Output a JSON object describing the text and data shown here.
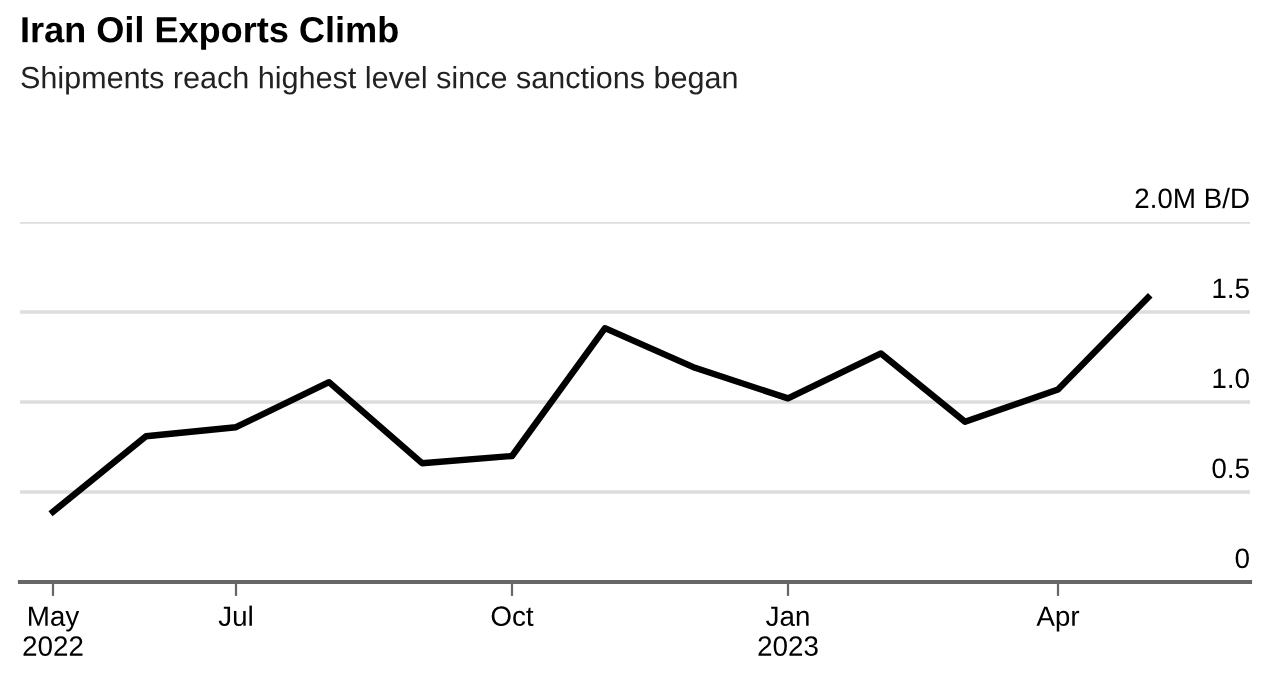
{
  "chart_data": {
    "type": "line",
    "title": "Iran Oil Exports Climb",
    "subtitle": "Shipments reach highest level since sanctions began",
    "x": [
      "2022-05",
      "2022-06",
      "2022-07",
      "2022-08",
      "2022-09",
      "2022-10",
      "2022-11",
      "2022-12",
      "2023-01",
      "2023-02",
      "2023-03",
      "2023-04",
      "2023-05"
    ],
    "series": [
      {
        "color": "#000000",
        "values": [
          0.39,
          0.81,
          0.86,
          1.11,
          0.66,
          0.7,
          1.41,
          1.19,
          1.02,
          1.27,
          0.89,
          1.07,
          1.58
        ]
      }
    ],
    "xlim": [
      "2022-04-20",
      "2023-06-04"
    ],
    "xticks": [
      {
        "value": "2022-05",
        "label": "May\n2022"
      },
      {
        "value": "2022-07",
        "label": "Jul"
      },
      {
        "value": "2022-10",
        "label": "Oct"
      },
      {
        "value": "2023-01",
        "label": "Jan\n2023"
      },
      {
        "value": "2023-04",
        "label": "Apr"
      }
    ],
    "ylim": [
      0,
      2.0
    ],
    "yticks": [
      0,
      0.5,
      {
        "value": 1.0,
        "label": "1.0"
      },
      1.5,
      {
        "value": 2.0,
        "label": "2.0M B/D"
      }
    ],
    "grid": "y",
    "marker": "none",
    "line_style": "solid"
  }
}
